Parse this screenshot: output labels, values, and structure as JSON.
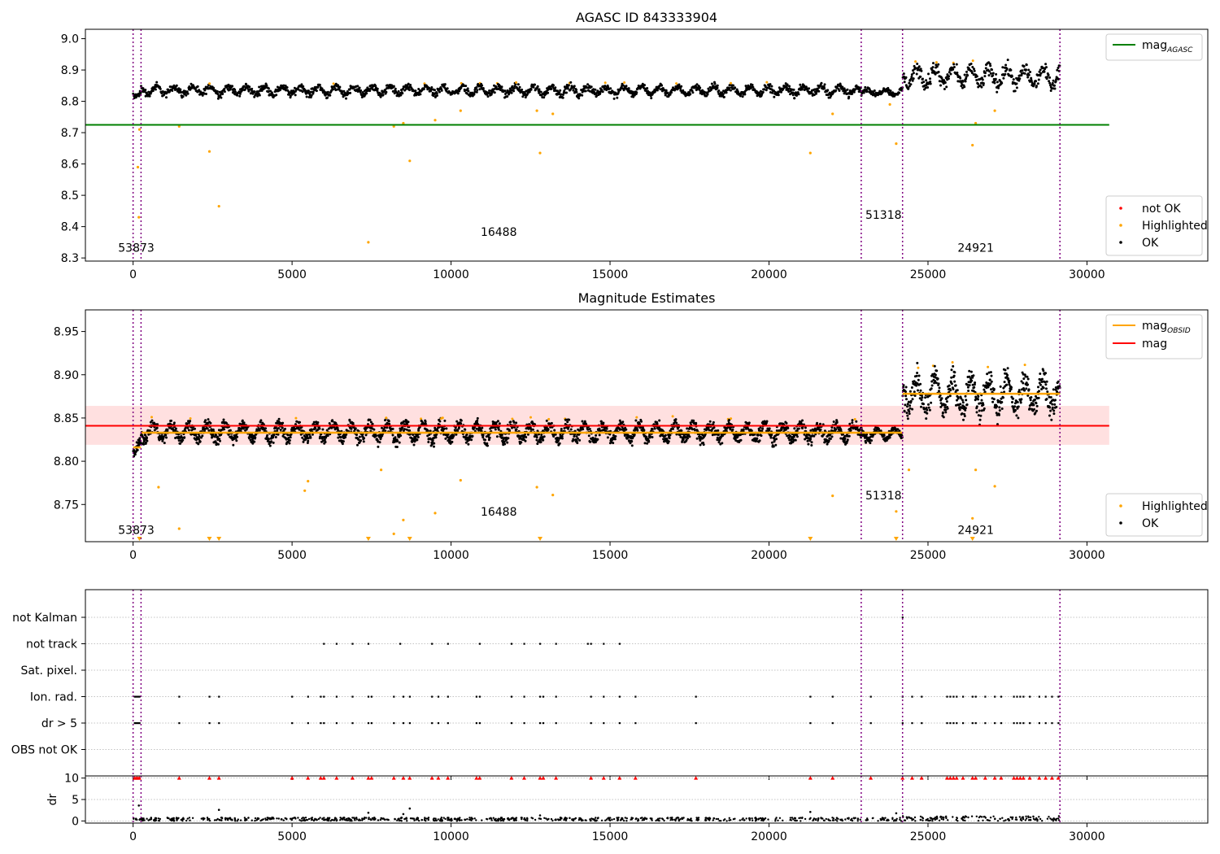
{
  "colors": {
    "ok": "#000000",
    "highlighted": "#ffa500",
    "not_ok": "#ff0000",
    "agasc_line": "#008000",
    "mag_line": "#ff0000",
    "obsid_line": "#ffa500",
    "band": "#ffcccc",
    "obs_boundary": "#800080",
    "grid": "#b0b0b0"
  },
  "chart_data": [
    {
      "type": "scatter",
      "title": "AGASC ID 843333904",
      "xlim": [
        -1500,
        33800
      ],
      "ylim": [
        8.29,
        9.03
      ],
      "xticks": [
        0,
        5000,
        10000,
        15000,
        20000,
        25000,
        30000
      ],
      "yticks": [
        8.3,
        8.4,
        8.5,
        8.6,
        8.7,
        8.8,
        8.9,
        9.0
      ],
      "ytick_labels": [
        "8.3",
        "8.4",
        "8.5",
        "8.6",
        "8.7",
        "8.8",
        "8.9",
        "9.0"
      ],
      "hlines": [
        {
          "label": "mag",
          "label_sub": "AGASC",
          "y": 8.725,
          "x": [
            -1500,
            30700
          ]
        }
      ],
      "obs_boundaries": [
        0,
        250,
        22900,
        24200,
        29150
      ],
      "obs_labels": [
        {
          "text": "53873",
          "x": 100,
          "y": 8.32
        },
        {
          "text": "16488",
          "x": 11500,
          "y": 8.37
        },
        {
          "text": "51318",
          "x": 23600,
          "y": 8.425
        },
        {
          "text": "24921",
          "x": 26500,
          "y": 8.32
        }
      ],
      "segments": [
        {
          "x": [
            0,
            250
          ],
          "center": 8.825,
          "spread": 0.02
        },
        {
          "x": [
            250,
            22900
          ],
          "center": 8.835,
          "spread": 0.025
        },
        {
          "x": [
            22900,
            24200
          ],
          "center": 8.83,
          "spread": 0.018
        },
        {
          "x": [
            24200,
            29150
          ],
          "center": 8.88,
          "spread": 0.05
        }
      ],
      "highlighted_outliers": [
        [
          150,
          8.59
        ],
        [
          180,
          8.43
        ],
        [
          200,
          8.71
        ],
        [
          1450,
          8.72
        ],
        [
          2400,
          8.64
        ],
        [
          2700,
          8.465
        ],
        [
          7400,
          8.35
        ],
        [
          8200,
          8.72
        ],
        [
          8500,
          8.73
        ],
        [
          8700,
          8.61
        ],
        [
          9500,
          8.74
        ],
        [
          10300,
          8.77
        ],
        [
          12700,
          8.77
        ],
        [
          12800,
          8.635
        ],
        [
          13200,
          8.76
        ],
        [
          21300,
          8.635
        ],
        [
          22000,
          8.76
        ],
        [
          23800,
          8.79
        ],
        [
          24000,
          8.665
        ],
        [
          26400,
          8.66
        ],
        [
          26500,
          8.73
        ],
        [
          27100,
          8.77
        ]
      ],
      "legend_lines": [
        {
          "label": "mag",
          "label_sub": "AGASC",
          "color": "#008000"
        }
      ],
      "legend_markers": [
        {
          "label": "not OK",
          "color": "#ff0000"
        },
        {
          "label": "Highlighted",
          "color": "#ffa500"
        },
        {
          "label": "OK",
          "color": "#000000"
        }
      ]
    },
    {
      "type": "scatter",
      "title": "Magnitude Estimates",
      "xlim": [
        -1500,
        33800
      ],
      "ylim": [
        8.707,
        8.975
      ],
      "xticks": [
        0,
        5000,
        10000,
        15000,
        20000,
        25000,
        30000
      ],
      "yticks": [
        8.75,
        8.8,
        8.85,
        8.9,
        8.95
      ],
      "ytick_labels": [
        "8.75",
        "8.80",
        "8.85",
        "8.90",
        "8.95"
      ],
      "mag": {
        "label": "mag",
        "y": 8.841,
        "band": [
          8.819,
          8.864
        ],
        "x": [
          -1500,
          30700
        ]
      },
      "obsid_mags": [
        {
          "x": [
            0,
            250
          ],
          "y": 8.816
        },
        {
          "x": [
            250,
            22900
          ],
          "y": 8.833
        },
        {
          "x": [
            22900,
            24200
          ],
          "y": 8.833
        },
        {
          "x": [
            24200,
            29150
          ],
          "y": 8.878
        }
      ],
      "obs_boundaries": [
        0,
        250,
        22900,
        24200,
        29150
      ],
      "obs_labels": [
        {
          "text": "53873",
          "x": 100,
          "y": 8.716
        },
        {
          "text": "16488",
          "x": 11500,
          "y": 8.737
        },
        {
          "text": "51318",
          "x": 23600,
          "y": 8.756
        },
        {
          "text": "24921",
          "x": 26500,
          "y": 8.716
        }
      ],
      "segments": [
        {
          "x": [
            0,
            250
          ],
          "center": 8.816,
          "spread": 0.013
        },
        {
          "x": [
            250,
            22900
          ],
          "center": 8.834,
          "spread": 0.017
        },
        {
          "x": [
            22900,
            24200
          ],
          "center": 8.831,
          "spread": 0.01
        },
        {
          "x": [
            24200,
            29150
          ],
          "center": 8.878,
          "spread": 0.035
        }
      ],
      "highlighted_outliers": [
        [
          800,
          8.77
        ],
        [
          1450,
          8.722
        ],
        [
          5400,
          8.766
        ],
        [
          5500,
          8.777
        ],
        [
          7800,
          8.79
        ],
        [
          8200,
          8.716
        ],
        [
          8500,
          8.732
        ],
        [
          9500,
          8.74
        ],
        [
          10300,
          8.778
        ],
        [
          12700,
          8.77
        ],
        [
          13200,
          8.761
        ],
        [
          22000,
          8.76
        ],
        [
          24000,
          8.742
        ],
        [
          24400,
          8.79
        ],
        [
          26400,
          8.734
        ],
        [
          26500,
          8.79
        ],
        [
          27100,
          8.771
        ]
      ],
      "clipped_points_x": [
        200,
        2400,
        2700,
        7400,
        8700,
        12800,
        21300,
        24000,
        26400
      ],
      "legend_lines": [
        {
          "label": "mag",
          "label_sub": "OBSID",
          "color": "#ffa500"
        },
        {
          "label": "mag",
          "label_sub": "",
          "color": "#ff0000"
        }
      ],
      "legend_markers": [
        {
          "label": "Highlighted",
          "color": "#ffa500"
        },
        {
          "label": "OK",
          "color": "#000000"
        }
      ]
    },
    {
      "type": "scatter",
      "title": "",
      "xlim": [
        -1500,
        33800
      ],
      "xticks": [
        0,
        5000,
        10000,
        15000,
        20000,
        25000,
        30000
      ],
      "flag_rows": [
        "not Kalman",
        "not track",
        "Sat. pixel.",
        "Ion. rad.",
        "dr > 5",
        "OBS not OK"
      ],
      "obs_boundaries": [
        0,
        250,
        22900,
        24200,
        29150
      ],
      "flags": {
        "not Kalman": [
          24200
        ],
        "not track": [
          6000,
          6400,
          6900,
          7400,
          8400,
          9400,
          9900,
          10900,
          11900,
          12300,
          12800,
          13300,
          14300,
          14400,
          14800,
          15300
        ],
        "Sat. pixel.": [],
        "Ion. rad.": [
          50,
          100,
          150,
          200,
          1450,
          2400,
          2700,
          5000,
          5500,
          5900,
          6000,
          6400,
          6900,
          7400,
          7500,
          8200,
          8500,
          8700,
          9400,
          9600,
          9900,
          10800,
          10900,
          11900,
          12300,
          12800,
          12900,
          13300,
          14400,
          14800,
          15300,
          15800,
          17700,
          21300,
          22000,
          23200,
          24200,
          24500,
          24800,
          25600,
          25700,
          25800,
          25900,
          26100,
          26400,
          26500,
          26800,
          27100,
          27300,
          27700,
          27800,
          27900,
          28000,
          28200,
          28500,
          28700,
          28900,
          29100
        ],
        "dr > 5": [
          50,
          100,
          150,
          200,
          1450,
          2400,
          2700,
          5000,
          5500,
          5900,
          6000,
          6400,
          6900,
          7400,
          7500,
          8200,
          8500,
          8700,
          9400,
          9600,
          9900,
          10800,
          10900,
          11900,
          12300,
          12800,
          12900,
          13300,
          14400,
          14800,
          15300,
          15800,
          17700,
          21300,
          22000,
          23200,
          24200,
          24500,
          24800,
          25600,
          25700,
          25800,
          25900,
          26100,
          26400,
          26500,
          26800,
          27100,
          27300,
          27700,
          27800,
          27900,
          28000,
          28200,
          28500,
          28700,
          28900,
          29100
        ],
        "OBS not OK": []
      },
      "dr": {
        "ylabel": "dr",
        "ylim": [
          -0.5,
          10.5
        ],
        "yticks": [
          0,
          5,
          10
        ],
        "ytick_labels": [
          "0",
          "5",
          "10"
        ],
        "clip_value": 10,
        "typical": [
          0,
          0.8
        ],
        "outliers": [
          [
            180,
            3.6
          ],
          [
            2700,
            2.6
          ],
          [
            7400,
            1.9
          ],
          [
            8500,
            1.6
          ],
          [
            8700,
            2.9
          ],
          [
            12800,
            1.3
          ],
          [
            21300,
            2.1
          ],
          [
            24000,
            1.8
          ]
        ]
      }
    }
  ]
}
